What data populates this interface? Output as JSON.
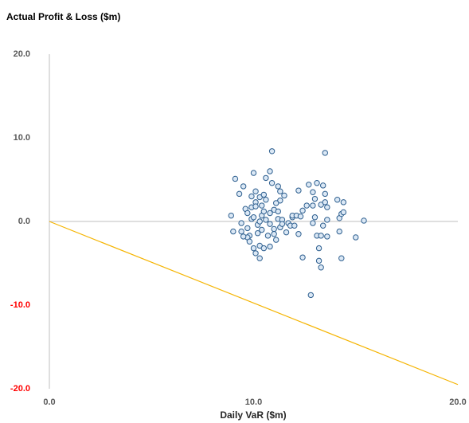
{
  "chart_data": {
    "type": "scatter",
    "title": "Actual Profit & Loss ($m)",
    "x_label": "Daily VaR ($m)",
    "xlim": [
      0,
      20
    ],
    "ylim": [
      -20,
      20
    ],
    "xticks": [
      {
        "value": 0,
        "label": "0.0"
      },
      {
        "value": 10,
        "label": "10.0"
      },
      {
        "value": 20,
        "label": "20.0"
      }
    ],
    "yticks": [
      {
        "value": 20,
        "label": "20.0"
      },
      {
        "value": 10,
        "label": "10.0"
      },
      {
        "value": 0,
        "label": "0.0"
      },
      {
        "value": -10,
        "label": "-10.0"
      },
      {
        "value": -20,
        "label": "-20.0"
      }
    ],
    "negative_tick_color": "#ff0000",
    "marker_fill": "#dbe8f5",
    "color": "#2e5f8f",
    "x": [
      8.9,
      9.0,
      9.1,
      9.3,
      9.4,
      9.4,
      9.5,
      9.6,
      9.7,
      9.7,
      9.8,
      9.7,
      9.9,
      9.9,
      9.9,
      10.0,
      10.0,
      10.1,
      10.1,
      10.2,
      10.2,
      10.3,
      10.3,
      10.4,
      10.4,
      10.4,
      10.5,
      10.6,
      10.6,
      10.6,
      10.7,
      10.8,
      10.8,
      10.8,
      10.9,
      10.9,
      11.0,
      11.0,
      11.1,
      11.2,
      11.2,
      11.2,
      11.3,
      11.3,
      11.3,
      11.4,
      11.5,
      11.6,
      11.7,
      11.8,
      11.9,
      11.9,
      12.0,
      12.1,
      12.2,
      12.2,
      12.3,
      12.4,
      12.4,
      12.6,
      12.7,
      12.9,
      12.9,
      12.9,
      13.0,
      13.0,
      13.1,
      13.1,
      13.2,
      13.2,
      13.3,
      13.3,
      13.3,
      13.4,
      13.4,
      13.5,
      13.5,
      13.5,
      13.6,
      13.6,
      13.6,
      12.8,
      14.1,
      14.2,
      14.2,
      14.3,
      14.3,
      14.4,
      14.4,
      15.0,
      15.4,
      9.5,
      9.8,
      10.0,
      10.1,
      10.3,
      10.5,
      10.8,
      11.0,
      11.1,
      10.3,
      10.1,
      10.5,
      11.4
    ],
    "y": [
      0.7,
      -1.2,
      5.1,
      3.3,
      -1.2,
      -0.2,
      4.2,
      1.5,
      1.0,
      -0.8,
      -1.7,
      -1.9,
      0.3,
      1.7,
      3.0,
      5.8,
      0.5,
      2.3,
      3.6,
      -0.4,
      -1.4,
      -2.9,
      0.0,
      0.7,
      1.9,
      -1.0,
      1.2,
      5.2,
      2.6,
      0.2,
      -1.7,
      1.0,
      -0.3,
      6.0,
      8.4,
      4.6,
      1.4,
      -0.9,
      -2.2,
      4.2,
      0.3,
      1.2,
      3.6,
      -0.7,
      2.5,
      0.2,
      3.1,
      -1.3,
      -0.2,
      -0.5,
      0.5,
      0.7,
      -0.5,
      0.7,
      -1.5,
      3.7,
      0.6,
      1.3,
      -4.3,
      1.9,
      4.4,
      -0.2,
      3.5,
      1.9,
      2.7,
      0.5,
      -1.7,
      4.6,
      -3.2,
      -4.7,
      2.0,
      -1.7,
      -5.5,
      -0.5,
      4.3,
      8.2,
      2.3,
      3.3,
      0.2,
      1.7,
      -1.8,
      -8.8,
      2.6,
      0.4,
      -1.2,
      0.9,
      -4.4,
      2.3,
      1.1,
      -1.9,
      0.1,
      -1.8,
      -2.4,
      -3.2,
      -3.8,
      -4.4,
      -3.2,
      -3.0,
      -1.5,
      2.2,
      2.9,
      1.8,
      3.2,
      -0.3
    ],
    "reference_line": {
      "x": [
        0,
        20
      ],
      "y": [
        0,
        -19.5
      ],
      "color": "#f5b400"
    }
  }
}
